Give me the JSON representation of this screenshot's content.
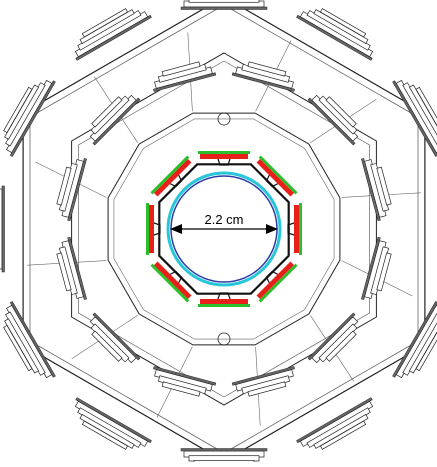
{
  "diagram": {
    "dimension_label": "2.2 cm",
    "colors": {
      "line": "#222222",
      "light_line": "#666666",
      "sensor_red": "#e8201a",
      "support_green": "#2bbf2b",
      "beampipe_cyan": "#27c6d8",
      "beampipe_blue": "#2a3aa8",
      "background": "#ffffff"
    },
    "structure": {
      "outer_layer_modules": 12,
      "middle_layer_modules": 12,
      "inner_layer_modules": 8
    }
  }
}
